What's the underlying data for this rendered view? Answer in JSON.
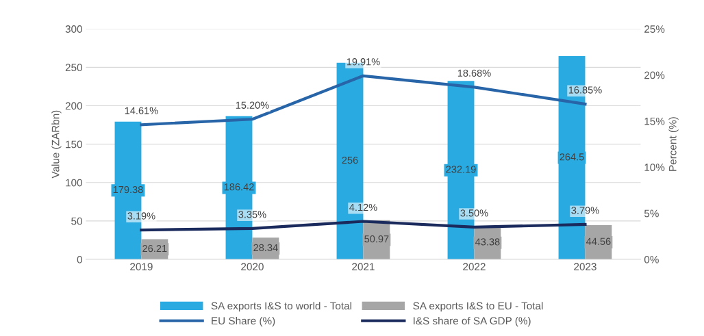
{
  "chart_data": {
    "type": "bar",
    "categories": [
      "2019",
      "2020",
      "2021",
      "2022",
      "2023"
    ],
    "ylabel": "Value (ZARbn)",
    "y2label": "Percent (%)",
    "ylim": [
      0,
      300
    ],
    "yticks": [
      0,
      50,
      100,
      150,
      200,
      250,
      300
    ],
    "y2lim": [
      0,
      25
    ],
    "y2ticks": [
      {
        "value": 0,
        "label": "0%"
      },
      {
        "value": 5,
        "label": "5%"
      },
      {
        "value": 10,
        "label": "10%"
      },
      {
        "value": 15,
        "label": "15%"
      },
      {
        "value": 20,
        "label": "20%"
      },
      {
        "value": 25,
        "label": "25%"
      }
    ],
    "grid": "y",
    "legend": "bottom",
    "series": [
      {
        "name": "SA exports I&S to world - Total",
        "color": "#29abe2",
        "values": [
          179.38,
          186.42,
          256,
          232.19,
          264.5
        ],
        "value_labels": [
          "179.38",
          "186.42",
          "256",
          "232.19",
          "264.5"
        ]
      },
      {
        "name": "SA exports I&S to EU - Total",
        "color": "#a6a6a6",
        "values": [
          26.21,
          28.34,
          50.97,
          43.38,
          44.56
        ],
        "value_labels": [
          "26.21",
          "28.34",
          "50.97",
          "43.38",
          "44.56"
        ]
      },
      {
        "name": "EU Share (%)",
        "type": "line",
        "axis": "y2",
        "color": "#2765a8",
        "values": [
          14.61,
          15.2,
          19.91,
          18.68,
          16.85
        ],
        "value_labels": [
          "14.61%",
          "15.20%",
          "19.91%",
          "18.68%",
          "16.85%"
        ]
      },
      {
        "name": "I&S share of SA GDP (%)",
        "type": "line",
        "axis": "y2",
        "color": "#1b2a5c",
        "values": [
          3.19,
          3.35,
          4.12,
          3.5,
          3.79
        ],
        "value_labels": [
          "3.19%",
          "3.35%",
          "4.12%",
          "3.50%",
          "3.79%"
        ]
      }
    ]
  }
}
